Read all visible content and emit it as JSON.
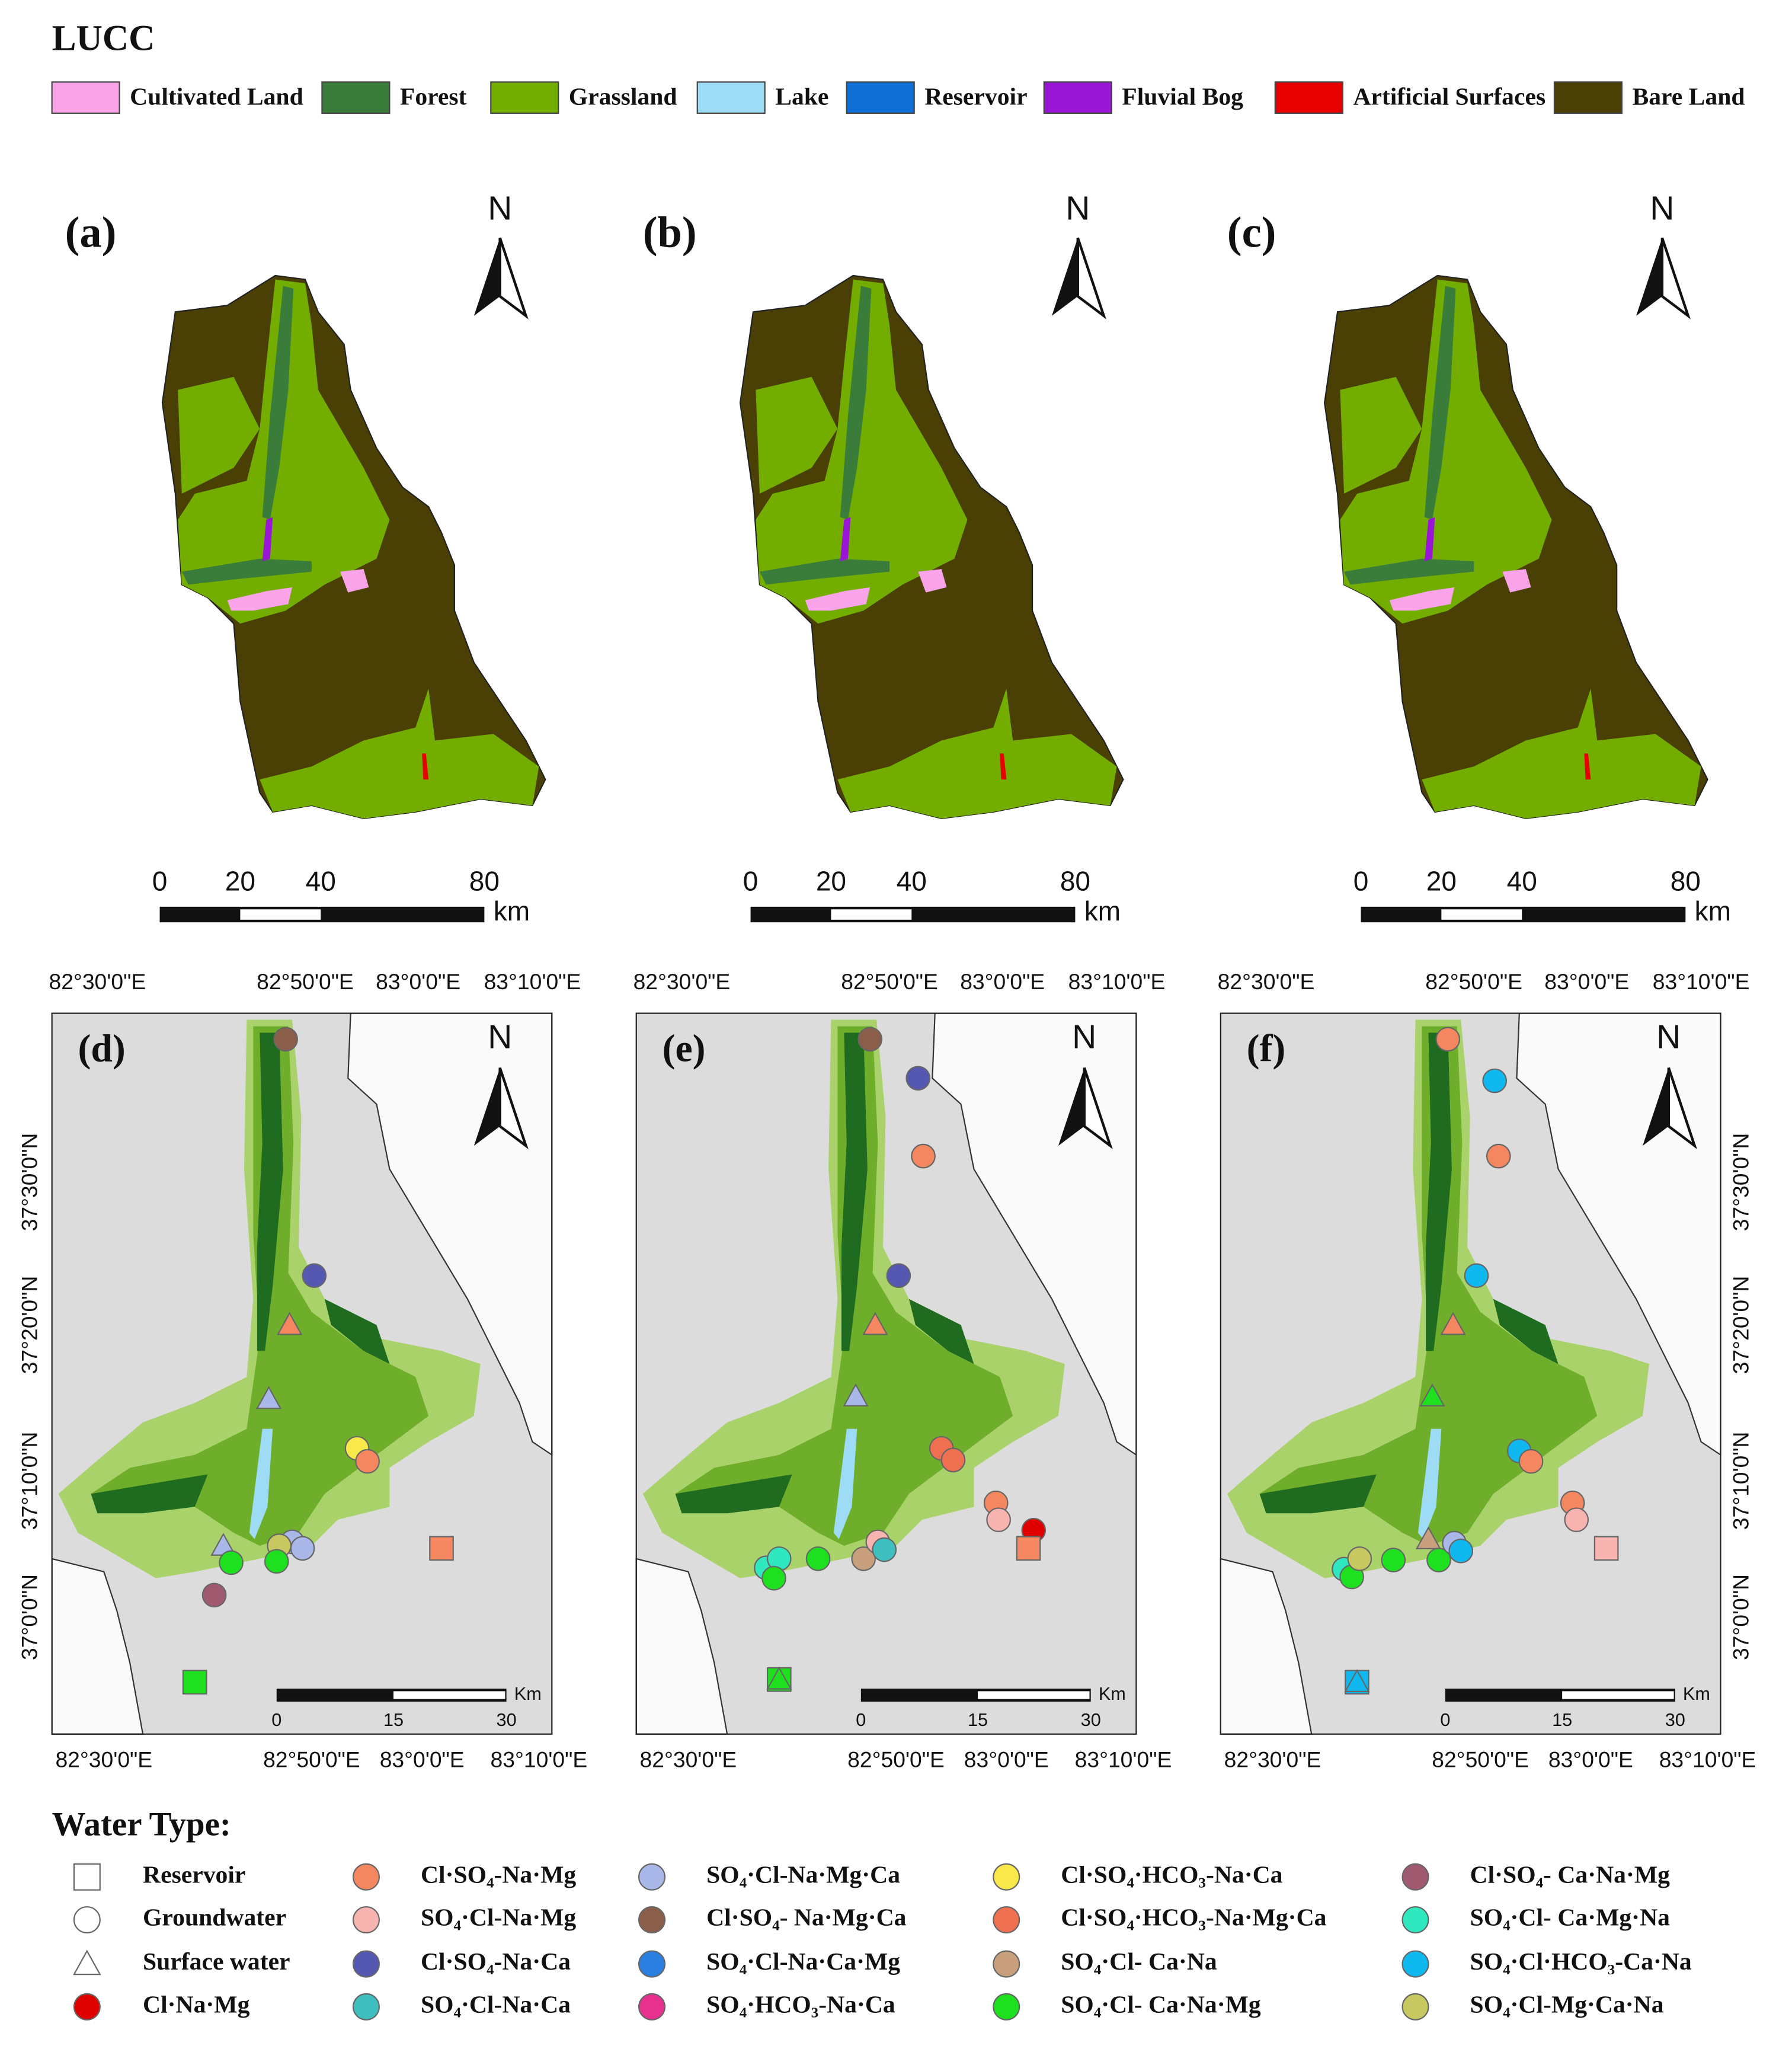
{
  "lucc_legend": {
    "title": "LUCC",
    "items": [
      {
        "label": "Cultivated Land",
        "color": "#f9a3e8"
      },
      {
        "label": "Forest",
        "color": "#3a7d3a"
      },
      {
        "label": "Grassland",
        "color": "#72ad00"
      },
      {
        "label": "Lake",
        "color": "#9edcf5"
      },
      {
        "label": "Reservoir",
        "color": "#0f6fd6"
      },
      {
        "label": "Fluvial Bog",
        "color": "#9a16d6"
      },
      {
        "label": "Artificial Surfaces",
        "color": "#e80000"
      },
      {
        "label": "Bare Land",
        "color": "#4a3f05"
      }
    ]
  },
  "top_panels": [
    "(a)",
    "(b)",
    "(c)"
  ],
  "bottom_panels": [
    "(d)",
    "(e)",
    "(f)"
  ],
  "north": "N",
  "scale_top": {
    "ticks": [
      "0",
      "20",
      "40",
      "80"
    ],
    "unit": "km"
  },
  "scale_bottom": {
    "ticks": [
      "0",
      "15",
      "30"
    ],
    "unit": "Km"
  },
  "lon_labels": [
    "82°30'0\"E",
    "82°50'0\"E",
    "83°0'0\"E",
    "83°10'0\"E"
  ],
  "lat_labels": [
    "37°30'0\"N",
    "37°20'0\"N",
    "37°10'0\"N",
    "37°0'0\"N"
  ],
  "water_legend": {
    "title": "Water Type:",
    "items": [
      {
        "label": "Reservoir",
        "shape": "square",
        "color": "#ffffff"
      },
      {
        "label": "Groundwater",
        "shape": "circle",
        "color": "#ffffff"
      },
      {
        "label": "Surface water",
        "shape": "triangle",
        "color": "#ffffff"
      },
      {
        "label": "Cl·Na·Mg",
        "shape": "circle",
        "color": "#e00000"
      },
      {
        "label": "Cl·SO₄-Na·Mg",
        "shape": "circle",
        "color": "#f4875f"
      },
      {
        "label": "SO₄·Cl-Na·Mg",
        "shape": "circle",
        "color": "#f8b4b0"
      },
      {
        "label": "Cl·SO₄-Na·Ca",
        "shape": "circle",
        "color": "#5558b0"
      },
      {
        "label": "SO₄·Cl-Na·Ca",
        "shape": "circle",
        "color": "#3fbfbf"
      },
      {
        "label": "SO₄·Cl-Na·Mg·Ca",
        "shape": "circle",
        "color": "#a9b8e8"
      },
      {
        "label": "Cl·SO₄- Na·Mg·Ca",
        "shape": "circle",
        "color": "#8b5e4a"
      },
      {
        "label": "SO₄·Cl-Na·Ca·Mg",
        "shape": "circle",
        "color": "#2a7fe0"
      },
      {
        "label": "SO₄·HCO₃-Na·Ca",
        "shape": "circle",
        "color": "#e8308f"
      },
      {
        "label": "Cl·SO₄·HCO₃-Na·Ca",
        "shape": "circle",
        "color": "#f8e84a"
      },
      {
        "label": "Cl·SO₄·HCO₃-Na·Mg·Ca",
        "shape": "circle",
        "color": "#ef7050"
      },
      {
        "label": "SO₄·Cl- Ca·Na",
        "shape": "circle",
        "color": "#c9a07e"
      },
      {
        "label": "SO₄·Cl- Ca·Na·Mg",
        "shape": "circle",
        "color": "#1ee01e"
      },
      {
        "label": "Cl·SO₄- Ca·Na·Mg",
        "shape": "circle",
        "color": "#a05a70"
      },
      {
        "label": "SO₄·Cl- Ca·Mg·Na",
        "shape": "circle",
        "color": "#2fe8c0"
      },
      {
        "label": "SO₄·Cl·HCO₃-Ca·Na",
        "shape": "circle",
        "color": "#10b8f0"
      },
      {
        "label": "SO₄·Cl-Mg·Ca·Na",
        "shape": "circle",
        "color": "#c8c860"
      }
    ]
  }
}
